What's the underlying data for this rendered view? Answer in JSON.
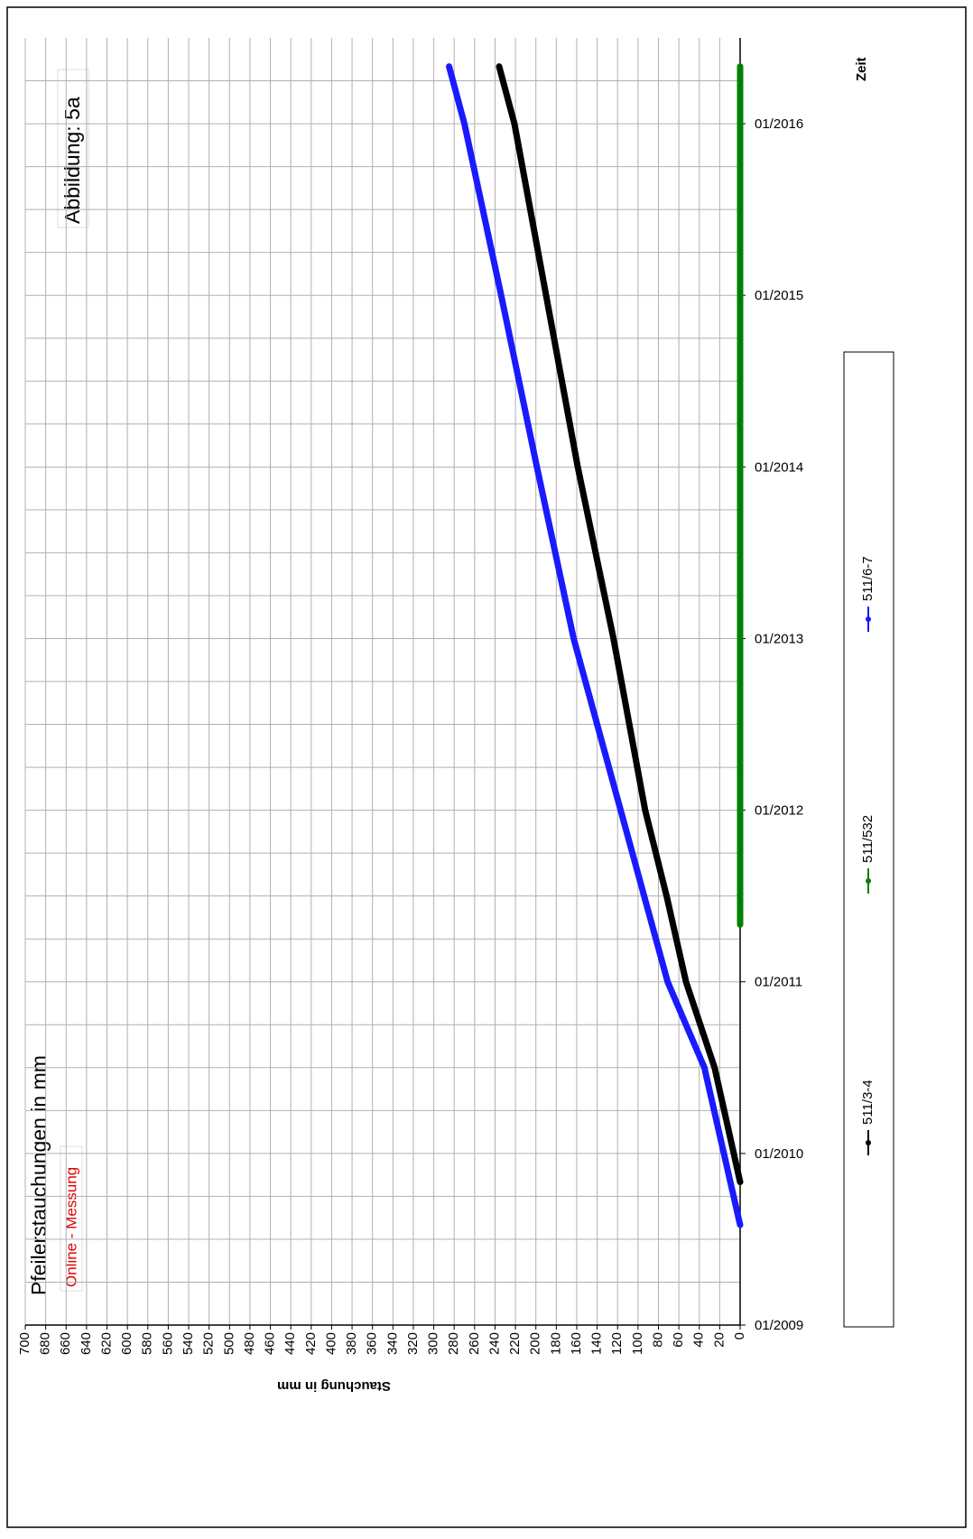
{
  "chart_data": {
    "type": "line",
    "title": "Pfeilerstauchungen in mm",
    "annotations": [
      "Online - Messung",
      "Abbildung:  5a"
    ],
    "x_label": "Zeit",
    "y_label": "Stauchung in mm",
    "xlim": [
      "01/2009",
      "07/2016"
    ],
    "xticks": [
      "01/2009",
      "01/2010",
      "01/2011",
      "01/2012",
      "01/2013",
      "01/2014",
      "01/2015",
      "01/2016"
    ],
    "ylim": [
      0,
      700
    ],
    "yticks": [
      0,
      20,
      40,
      60,
      80,
      100,
      120,
      140,
      160,
      180,
      200,
      220,
      240,
      260,
      280,
      300,
      320,
      340,
      360,
      380,
      400,
      420,
      440,
      460,
      480,
      500,
      520,
      540,
      560,
      580,
      600,
      620,
      640,
      660,
      680,
      700
    ],
    "grid": true,
    "legend": "bottom",
    "series": [
      {
        "name": "511/3-4",
        "color": "#000000",
        "x": [
          "11/2009",
          "07/2010",
          "01/2011",
          "07/2011",
          "01/2012",
          "01/2013",
          "01/2014",
          "01/2015",
          "01/2016",
          "05/2016"
        ],
        "values": [
          0,
          25,
          53,
          72,
          93,
          124,
          159,
          190,
          221,
          236
        ]
      },
      {
        "name": "511/532",
        "color": "#008000",
        "x": [
          "05/2011",
          "01/2012",
          "01/2013",
          "01/2014",
          "01/2015",
          "01/2016",
          "05/2016"
        ],
        "values": [
          0,
          0,
          0,
          0,
          0,
          0,
          0
        ]
      },
      {
        "name": "511/6-7",
        "color": "#1a1aff",
        "x": [
          "08/2009",
          "07/2010",
          "01/2011",
          "01/2012",
          "01/2013",
          "01/2014",
          "01/2015",
          "01/2016",
          "05/2016"
        ],
        "values": [
          0,
          35,
          71,
          117,
          163,
          199,
          234,
          270,
          285
        ]
      }
    ]
  }
}
